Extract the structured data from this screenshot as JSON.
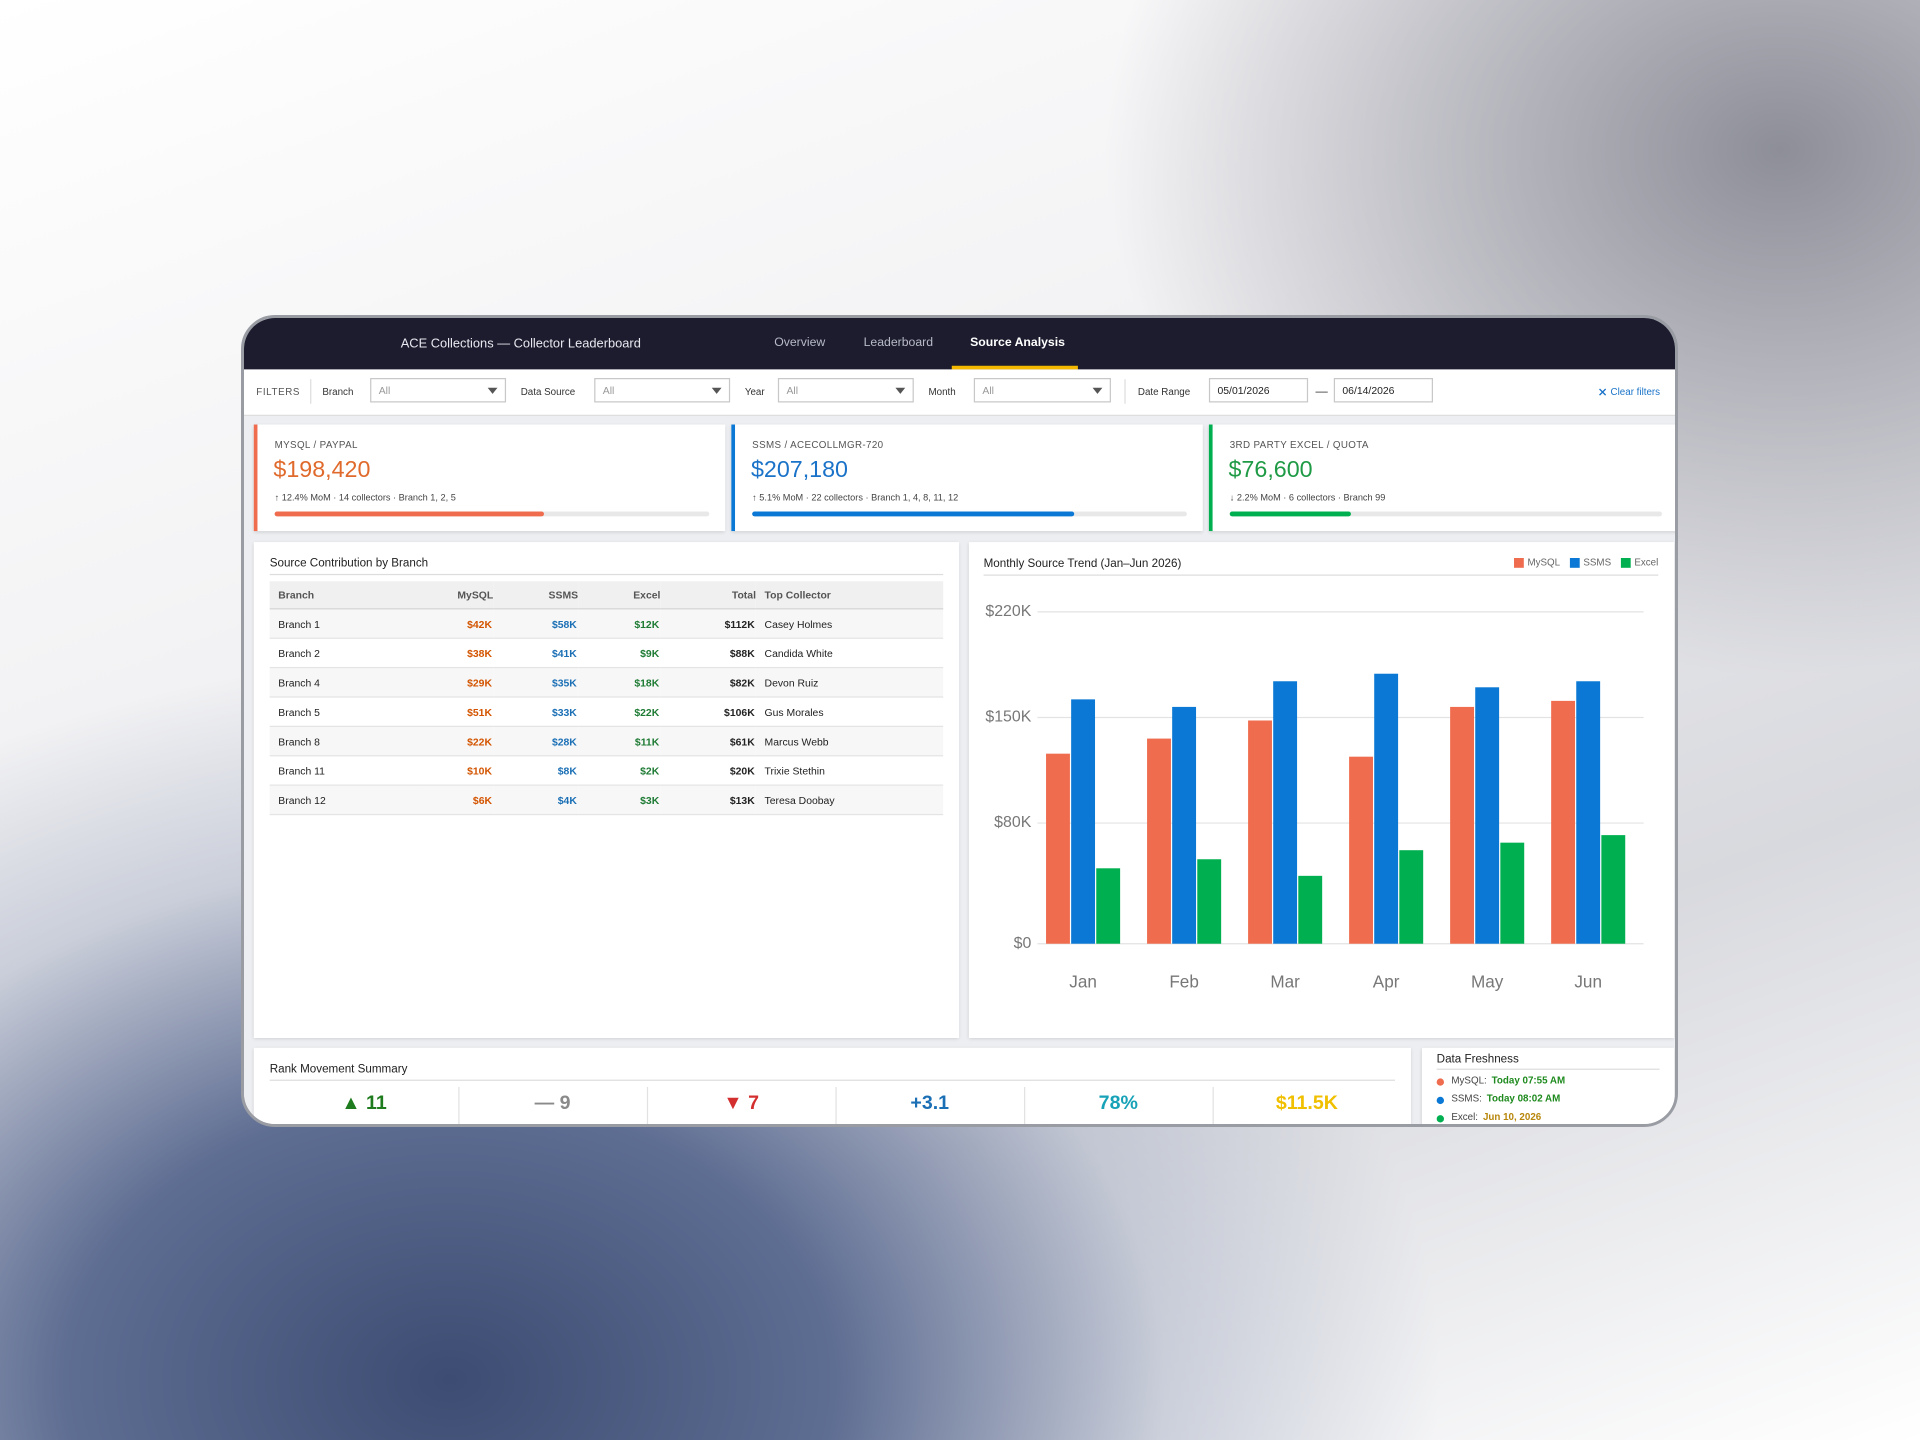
{
  "header": {
    "title": "ACE Collections — Collector Leaderboard",
    "tabs": [
      "Overview",
      "Leaderboard",
      "Source Analysis"
    ]
  },
  "filters": {
    "label": "FILTERS",
    "fields": [
      {
        "label": "Branch",
        "value": "All"
      },
      {
        "label": "Data Source",
        "value": "All"
      },
      {
        "label": "Year",
        "value": "All"
      },
      {
        "label": "Month",
        "value": "All"
      }
    ],
    "date_range": {
      "label": "Date Range",
      "start": "05/01/2026",
      "separator": "—",
      "end": "06/14/2026"
    },
    "clear": "Clear filters"
  },
  "kpis": [
    {
      "label": "MYSQL / PAYPAL",
      "value": "$198,420",
      "detail": "↑ 12.4% MoM · 14 collectors · Branch 1, 2, 5"
    },
    {
      "label": "SSMS / ACECOLLMGR-720",
      "value": "$207,180",
      "detail": "↑ 5.1% MoM · 22 collectors · Branch 1, 4, 8, 11, 12"
    },
    {
      "label": "3RD PARTY EXCEL / QUOTA",
      "value": "$76,600",
      "detail": "↓ 2.2% MoM · 6 collectors · Branch 99"
    }
  ],
  "table": {
    "title": "Source Contribution by Branch",
    "columns": [
      "Branch",
      "MySQL",
      "SSMS",
      "Excel",
      "Total",
      "Top Collector"
    ],
    "rows": [
      [
        "Branch 1",
        "$42K",
        "$58K",
        "$12K",
        "$112K",
        "Casey Holmes"
      ],
      [
        "Branch 2",
        "$38K",
        "$41K",
        "$9K",
        "$88K",
        "Candida White"
      ],
      [
        "Branch 4",
        "$29K",
        "$35K",
        "$18K",
        "$82K",
        "Devon Ruiz"
      ],
      [
        "Branch 5",
        "$51K",
        "$33K",
        "$22K",
        "$106K",
        "Gus Morales"
      ],
      [
        "Branch 8",
        "$22K",
        "$28K",
        "$11K",
        "$61K",
        "Marcus Webb"
      ],
      [
        "Branch 11",
        "$10K",
        "$8K",
        "$2K",
        "$20K",
        "Trixie Stethin"
      ],
      [
        "Branch 12",
        "$6K",
        "$4K",
        "$3K",
        "$13K",
        "Teresa Doobay"
      ]
    ]
  },
  "chart_data": {
    "type": "bar",
    "title": "Monthly Source Trend (Jan–Jun 2026)",
    "categories": [
      "Jan",
      "Feb",
      "Mar",
      "Apr",
      "May",
      "Jun"
    ],
    "series": [
      {
        "name": "MySQL",
        "color": "#ef6c4f",
        "values": [
          126000,
          136000,
          148000,
          124000,
          157000,
          161000
        ]
      },
      {
        "name": "SSMS",
        "color": "#0a78d4",
        "values": [
          162000,
          157000,
          174000,
          179000,
          170000,
          174000
        ]
      },
      {
        "name": "Excel",
        "color": "#00b050",
        "values": [
          50000,
          56000,
          45000,
          62000,
          67000,
          72000
        ]
      }
    ],
    "ylim": [
      0,
      220000
    ],
    "yticks": [
      {
        "value": 0,
        "label": "$0"
      },
      {
        "value": 80000,
        "label": "$80K"
      },
      {
        "value": 150000,
        "label": "$150K"
      },
      {
        "value": 220000,
        "label": "$220K"
      }
    ],
    "grid": true,
    "legend": "top-right"
  },
  "rank_summary": {
    "title": "Rank Movement Summary",
    "items": [
      "▲ 11",
      "— 9",
      "▼ 7",
      "+3.1",
      "78%",
      "$11.5K"
    ]
  },
  "freshness": {
    "title": "Data Freshness",
    "items": [
      {
        "source": "MySQL:",
        "time": "Today 07:55 AM"
      },
      {
        "source": "SSMS:",
        "time": "Today 08:02 AM"
      },
      {
        "source": "Excel:",
        "time": "Jun 10, 2026"
      }
    ]
  }
}
